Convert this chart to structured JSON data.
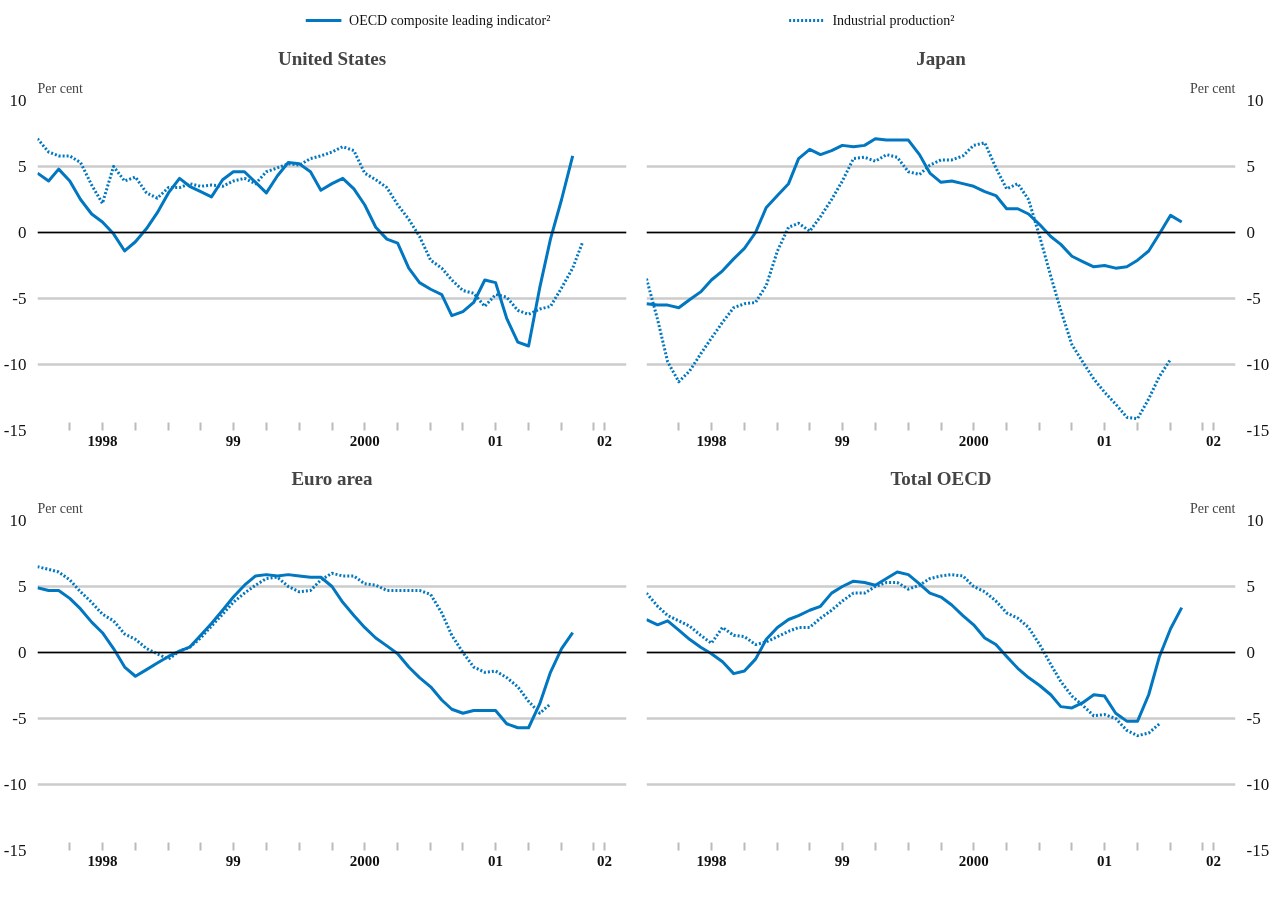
{
  "chart_data": [
    {
      "type": "line",
      "title": "United States",
      "ylabel": "Per cent",
      "legend": "top",
      "grid": "y",
      "xlim": [
        "1998-01",
        "2002-07"
      ],
      "ylim": [
        -15,
        10
      ],
      "yticks": [
        -15,
        -10,
        -5,
        0,
        5,
        10
      ],
      "xticks": [
        {
          "value": "1998-04",
          "label": null
        },
        {
          "value": "1998-07",
          "label": "1998"
        },
        {
          "value": "1998-10",
          "label": null
        },
        {
          "value": "1999-01",
          "label": null
        },
        {
          "value": "1999-04",
          "label": null
        },
        {
          "value": "1999-07",
          "label": "99"
        },
        {
          "value": "1999-10",
          "label": null
        },
        {
          "value": "2000-01",
          "label": null
        },
        {
          "value": "2000-04",
          "label": null
        },
        {
          "value": "2000-07",
          "label": "2000"
        },
        {
          "value": "2000-10",
          "label": null
        },
        {
          "value": "2001-01",
          "label": null
        },
        {
          "value": "2001-04",
          "label": null
        },
        {
          "value": "2001-07",
          "label": "01"
        },
        {
          "value": "2001-10",
          "label": null
        },
        {
          "value": "2002-01",
          "label": null
        },
        {
          "value": "2002-04",
          "label": null
        },
        {
          "value": "2002-05",
          "label": "02"
        }
      ],
      "ref_lines": [
        {
          "axis": "y",
          "value": 0,
          "color": "#000000"
        }
      ],
      "series": [
        {
          "name": "OECD composite leading indicator²",
          "color": "#0077c0",
          "line_style": "solid",
          "x": [
            "1998-01",
            "1998-02",
            "1998-03",
            "1998-04",
            "1998-05",
            "1998-06",
            "1998-07",
            "1998-08",
            "1998-09",
            "1998-10",
            "1998-11",
            "1998-12",
            "1999-01",
            "1999-02",
            "1999-03",
            "1999-04",
            "1999-05",
            "1999-06",
            "1999-07",
            "1999-08",
            "1999-09",
            "1999-10",
            "1999-11",
            "1999-12",
            "2000-01",
            "2000-02",
            "2000-03",
            "2000-04",
            "2000-05",
            "2000-06",
            "2000-07",
            "2000-08",
            "2000-09",
            "2000-10",
            "2000-11",
            "2000-12",
            "2001-01",
            "2001-02",
            "2001-03",
            "2001-04",
            "2001-05",
            "2001-06",
            "2001-07",
            "2001-08",
            "2001-09",
            "2001-10",
            "2001-11",
            "2001-12",
            "2002-01",
            "2002-02"
          ],
          "values": [
            4.5,
            3.9,
            4.8,
            3.9,
            2.5,
            1.4,
            0.8,
            -0.1,
            -1.4,
            -0.7,
            0.3,
            1.5,
            3.0,
            4.1,
            3.5,
            3.1,
            2.7,
            4.0,
            4.6,
            4.6,
            3.8,
            3.0,
            4.3,
            5.3,
            5.2,
            4.6,
            3.2,
            3.7,
            4.1,
            3.3,
            2.1,
            0.4,
            -0.5,
            -0.8,
            -2.7,
            -3.8,
            -4.3,
            -4.7,
            -6.3,
            -6.0,
            -5.3,
            -3.6,
            -3.8,
            -6.5,
            -8.3,
            -8.6,
            -4.2,
            -0.5,
            2.5,
            5.8
          ]
        },
        {
          "name": "Industrial production²",
          "color": "#0077c0",
          "line_style": "dotted",
          "x": [
            "1998-01",
            "1998-02",
            "1998-03",
            "1998-04",
            "1998-05",
            "1998-06",
            "1998-07",
            "1998-08",
            "1998-09",
            "1998-10",
            "1998-11",
            "1998-12",
            "1999-01",
            "1999-02",
            "1999-03",
            "1999-04",
            "1999-05",
            "1999-06",
            "1999-07",
            "1999-08",
            "1999-09",
            "1999-10",
            "1999-11",
            "1999-12",
            "2000-01",
            "2000-02",
            "2000-03",
            "2000-04",
            "2000-05",
            "2000-06",
            "2000-07",
            "2000-08",
            "2000-09",
            "2000-10",
            "2000-11",
            "2000-12",
            "2001-01",
            "2001-02",
            "2001-03",
            "2001-04",
            "2001-05",
            "2001-06",
            "2001-07",
            "2001-08",
            "2001-09",
            "2001-10",
            "2001-11",
            "2001-12",
            "2002-01",
            "2002-02",
            "2002-03"
          ],
          "values": [
            7.1,
            6.1,
            5.8,
            5.8,
            5.3,
            3.6,
            2.2,
            5.0,
            3.9,
            4.2,
            3.0,
            2.6,
            3.4,
            3.4,
            3.7,
            3.5,
            3.6,
            3.5,
            3.9,
            4.1,
            3.7,
            4.6,
            4.9,
            5.2,
            5.1,
            5.6,
            5.8,
            6.1,
            6.5,
            6.2,
            4.5,
            4.0,
            3.4,
            2.1,
            1.0,
            -0.3,
            -2.1,
            -2.7,
            -3.6,
            -4.4,
            -4.6,
            -5.6,
            -4.7,
            -4.9,
            -5.9,
            -6.2,
            -5.8,
            -5.6,
            -4.2,
            -2.7,
            -0.7
          ]
        }
      ]
    },
    {
      "type": "line",
      "title": "Japan",
      "y2label": "Per cent",
      "grid": "y",
      "xlim": [
        "1998-01",
        "2002-07"
      ],
      "y2lim": [
        -15,
        10
      ],
      "y2ticks": [
        -15,
        -10,
        -5,
        0,
        5,
        10
      ],
      "xticks": [
        {
          "value": "1998-04",
          "label": null
        },
        {
          "value": "1998-07",
          "label": "1998"
        },
        {
          "value": "1998-10",
          "label": null
        },
        {
          "value": "1999-01",
          "label": null
        },
        {
          "value": "1999-04",
          "label": null
        },
        {
          "value": "1999-07",
          "label": "99"
        },
        {
          "value": "1999-10",
          "label": null
        },
        {
          "value": "2000-01",
          "label": null
        },
        {
          "value": "2000-04",
          "label": null
        },
        {
          "value": "2000-07",
          "label": "2000"
        },
        {
          "value": "2000-10",
          "label": null
        },
        {
          "value": "2001-01",
          "label": null
        },
        {
          "value": "2001-04",
          "label": null
        },
        {
          "value": "2001-07",
          "label": "01"
        },
        {
          "value": "2001-10",
          "label": null
        },
        {
          "value": "2002-01",
          "label": null
        },
        {
          "value": "2002-04",
          "label": null
        },
        {
          "value": "2002-05",
          "label": "02"
        }
      ],
      "ref_lines": [
        {
          "axis": "y2",
          "value": 0,
          "color": "#000000"
        }
      ],
      "series": [
        {
          "color": "#0077c0",
          "line_style": "solid",
          "axis": "y2",
          "x": [
            "1998-01",
            "1998-02",
            "1998-03",
            "1998-04",
            "1998-05",
            "1998-06",
            "1998-07",
            "1998-08",
            "1998-09",
            "1998-10",
            "1998-11",
            "1998-12",
            "1999-01",
            "1999-02",
            "1999-03",
            "1999-04",
            "1999-05",
            "1999-06",
            "1999-07",
            "1999-08",
            "1999-09",
            "1999-10",
            "1999-11",
            "1999-12",
            "2000-01",
            "2000-02",
            "2000-03",
            "2000-04",
            "2000-05",
            "2000-06",
            "2000-07",
            "2000-08",
            "2000-09",
            "2000-10",
            "2000-11",
            "2000-12",
            "2001-01",
            "2001-02",
            "2001-03",
            "2001-04",
            "2001-05",
            "2001-06",
            "2001-07",
            "2001-08",
            "2001-09",
            "2001-10",
            "2001-11",
            "2001-12",
            "2002-01",
            "2002-02"
          ],
          "values": [
            -5.4,
            -5.5,
            -5.5,
            -5.7,
            -5.1,
            -4.5,
            -3.6,
            -2.9,
            -2.0,
            -1.2,
            0.0,
            1.9,
            2.8,
            3.7,
            5.6,
            6.3,
            5.9,
            6.2,
            6.6,
            6.5,
            6.6,
            7.1,
            7.0,
            7.0,
            7.0,
            5.9,
            4.5,
            3.8,
            3.9,
            3.7,
            3.5,
            3.1,
            2.8,
            1.8,
            1.8,
            1.4,
            0.6,
            -0.3,
            -0.9,
            -1.8,
            -2.2,
            -2.6,
            -2.5,
            -2.7,
            -2.6,
            -2.1,
            -1.4,
            -0.1,
            1.3,
            0.8
          ]
        },
        {
          "color": "#0077c0",
          "line_style": "dotted",
          "axis": "y2",
          "x": [
            "1998-01",
            "1998-02",
            "1998-03",
            "1998-04",
            "1998-05",
            "1998-06",
            "1998-07",
            "1998-08",
            "1998-09",
            "1998-10",
            "1998-11",
            "1998-12",
            "1999-01",
            "1999-02",
            "1999-03",
            "1999-04",
            "1999-05",
            "1999-06",
            "1999-07",
            "1999-08",
            "1999-09",
            "1999-10",
            "1999-11",
            "1999-12",
            "2000-01",
            "2000-02",
            "2000-03",
            "2000-04",
            "2000-05",
            "2000-06",
            "2000-07",
            "2000-08",
            "2000-09",
            "2000-10",
            "2000-11",
            "2000-12",
            "2001-01",
            "2001-02",
            "2001-03",
            "2001-04",
            "2001-05",
            "2001-06",
            "2001-07",
            "2001-08",
            "2001-09",
            "2001-10",
            "2001-11",
            "2001-12",
            "2002-01"
          ],
          "values": [
            -3.5,
            -6.6,
            -9.8,
            -11.3,
            -10.5,
            -9.2,
            -8.0,
            -6.8,
            -5.7,
            -5.4,
            -5.3,
            -4.0,
            -1.4,
            0.4,
            0.7,
            0.1,
            1.2,
            2.5,
            3.9,
            5.6,
            5.7,
            5.4,
            5.9,
            5.7,
            4.6,
            4.4,
            5.1,
            5.5,
            5.5,
            5.8,
            6.6,
            6.8,
            4.9,
            3.3,
            3.7,
            2.5,
            -0.3,
            -3.3,
            -5.9,
            -8.5,
            -9.8,
            -11.1,
            -12.1,
            -13.0,
            -14.0,
            -14.1,
            -12.6,
            -10.9,
            -9.6
          ]
        }
      ]
    },
    {
      "type": "line",
      "title": "Euro area",
      "ylabel": "Per cent",
      "grid": "y",
      "xlim": [
        "1998-01",
        "2002-07"
      ],
      "ylim": [
        -15,
        10
      ],
      "yticks": [
        -15,
        -10,
        -5,
        0,
        5,
        10
      ],
      "xticks": [
        {
          "value": "1998-04",
          "label": null
        },
        {
          "value": "1998-07",
          "label": "1998"
        },
        {
          "value": "1998-10",
          "label": null
        },
        {
          "value": "1999-01",
          "label": null
        },
        {
          "value": "1999-04",
          "label": null
        },
        {
          "value": "1999-07",
          "label": "99"
        },
        {
          "value": "1999-10",
          "label": null
        },
        {
          "value": "2000-01",
          "label": null
        },
        {
          "value": "2000-04",
          "label": null
        },
        {
          "value": "2000-07",
          "label": "2000"
        },
        {
          "value": "2000-10",
          "label": null
        },
        {
          "value": "2001-01",
          "label": null
        },
        {
          "value": "2001-04",
          "label": null
        },
        {
          "value": "2001-07",
          "label": "01"
        },
        {
          "value": "2001-10",
          "label": null
        },
        {
          "value": "2002-01",
          "label": null
        },
        {
          "value": "2002-04",
          "label": null
        },
        {
          "value": "2002-05",
          "label": "02"
        }
      ],
      "ref_lines": [
        {
          "axis": "y",
          "value": 0,
          "color": "#000000"
        }
      ],
      "series": [
        {
          "color": "#0077c0",
          "line_style": "solid",
          "x": [
            "1998-01",
            "1998-02",
            "1998-03",
            "1998-04",
            "1998-05",
            "1998-06",
            "1998-07",
            "1998-08",
            "1998-09",
            "1998-10",
            "1998-11",
            "1998-12",
            "1999-01",
            "1999-02",
            "1999-03",
            "1999-04",
            "1999-05",
            "1999-06",
            "1999-07",
            "1999-08",
            "1999-09",
            "1999-10",
            "1999-11",
            "1999-12",
            "2000-01",
            "2000-02",
            "2000-03",
            "2000-04",
            "2000-05",
            "2000-06",
            "2000-07",
            "2000-08",
            "2000-09",
            "2000-10",
            "2000-11",
            "2000-12",
            "2001-01",
            "2001-02",
            "2001-03",
            "2001-04",
            "2001-05",
            "2001-06",
            "2001-07",
            "2001-08",
            "2001-09",
            "2001-10",
            "2001-11",
            "2001-12",
            "2002-01",
            "2002-02"
          ],
          "values": [
            4.9,
            4.7,
            4.7,
            4.1,
            3.3,
            2.3,
            1.5,
            0.3,
            -1.1,
            -1.8,
            -1.3,
            -0.8,
            -0.3,
            0.1,
            0.4,
            1.3,
            2.2,
            3.2,
            4.2,
            5.1,
            5.8,
            5.9,
            5.8,
            5.9,
            5.8,
            5.7,
            5.7,
            5.0,
            3.8,
            2.8,
            1.9,
            1.1,
            0.5,
            -0.1,
            -1.1,
            -1.9,
            -2.6,
            -3.6,
            -4.3,
            -4.6,
            -4.4,
            -4.4,
            -4.4,
            -5.4,
            -5.7,
            -5.7,
            -3.9,
            -1.5,
            0.3,
            1.5
          ]
        },
        {
          "color": "#0077c0",
          "line_style": "dotted",
          "x": [
            "1998-01",
            "1998-02",
            "1998-03",
            "1998-04",
            "1998-05",
            "1998-06",
            "1998-07",
            "1998-08",
            "1998-09",
            "1998-10",
            "1998-11",
            "1998-12",
            "1999-01",
            "1999-02",
            "1999-03",
            "1999-04",
            "1999-05",
            "1999-06",
            "1999-07",
            "1999-08",
            "1999-09",
            "1999-10",
            "1999-11",
            "1999-12",
            "2000-01",
            "2000-02",
            "2000-03",
            "2000-04",
            "2000-05",
            "2000-06",
            "2000-07",
            "2000-08",
            "2000-09",
            "2000-10",
            "2000-11",
            "2000-12",
            "2001-01",
            "2001-02",
            "2001-03",
            "2001-04",
            "2001-05",
            "2001-06",
            "2001-07",
            "2001-08",
            "2001-09",
            "2001-10",
            "2001-11",
            "2001-12"
          ],
          "values": [
            6.5,
            6.3,
            6.1,
            5.5,
            4.6,
            3.8,
            2.9,
            2.4,
            1.4,
            1.0,
            0.3,
            -0.1,
            -0.5,
            0.1,
            0.4,
            1.1,
            2.0,
            2.9,
            3.8,
            4.5,
            5.1,
            5.6,
            5.7,
            5.0,
            4.6,
            4.7,
            5.5,
            6.0,
            5.8,
            5.8,
            5.2,
            5.1,
            4.7,
            4.7,
            4.7,
            4.7,
            4.4,
            3.0,
            1.3,
            0.0,
            -1.1,
            -1.5,
            -1.4,
            -1.9,
            -2.6,
            -3.7,
            -4.6,
            -3.9
          ]
        }
      ]
    },
    {
      "type": "line",
      "title": "Total OECD",
      "y2label": "Per cent",
      "grid": "y",
      "xlim": [
        "1998-01",
        "2002-07"
      ],
      "y2lim": [
        -15,
        10
      ],
      "y2ticks": [
        -15,
        -10,
        -5,
        0,
        5,
        10
      ],
      "xticks": [
        {
          "value": "1998-04",
          "label": null
        },
        {
          "value": "1998-07",
          "label": "1998"
        },
        {
          "value": "1998-10",
          "label": null
        },
        {
          "value": "1999-01",
          "label": null
        },
        {
          "value": "1999-04",
          "label": null
        },
        {
          "value": "1999-07",
          "label": "99"
        },
        {
          "value": "1999-10",
          "label": null
        },
        {
          "value": "2000-01",
          "label": null
        },
        {
          "value": "2000-04",
          "label": null
        },
        {
          "value": "2000-07",
          "label": "2000"
        },
        {
          "value": "2000-10",
          "label": null
        },
        {
          "value": "2001-01",
          "label": null
        },
        {
          "value": "2001-04",
          "label": null
        },
        {
          "value": "2001-07",
          "label": "01"
        },
        {
          "value": "2001-10",
          "label": null
        },
        {
          "value": "2002-01",
          "label": null
        },
        {
          "value": "2002-04",
          "label": null
        },
        {
          "value": "2002-05",
          "label": "02"
        }
      ],
      "ref_lines": [
        {
          "axis": "y2",
          "value": 0,
          "color": "#000000"
        }
      ],
      "series": [
        {
          "color": "#0077c0",
          "line_style": "solid",
          "axis": "y2",
          "x": [
            "1998-01",
            "1998-02",
            "1998-03",
            "1998-04",
            "1998-05",
            "1998-06",
            "1998-07",
            "1998-08",
            "1998-09",
            "1998-10",
            "1998-11",
            "1998-12",
            "1999-01",
            "1999-02",
            "1999-03",
            "1999-04",
            "1999-05",
            "1999-06",
            "1999-07",
            "1999-08",
            "1999-09",
            "1999-10",
            "1999-11",
            "1999-12",
            "2000-01",
            "2000-02",
            "2000-03",
            "2000-04",
            "2000-05",
            "2000-06",
            "2000-07",
            "2000-08",
            "2000-09",
            "2000-10",
            "2000-11",
            "2000-12",
            "2001-01",
            "2001-02",
            "2001-03",
            "2001-04",
            "2001-05",
            "2001-06",
            "2001-07",
            "2001-08",
            "2001-09",
            "2001-10",
            "2001-11",
            "2001-12",
            "2002-01",
            "2002-02"
          ],
          "values": [
            2.5,
            2.1,
            2.4,
            1.7,
            1.0,
            0.4,
            -0.1,
            -0.7,
            -1.6,
            -1.4,
            -0.5,
            1.0,
            1.9,
            2.5,
            2.8,
            3.2,
            3.5,
            4.5,
            5.0,
            5.4,
            5.3,
            5.1,
            5.6,
            6.1,
            5.9,
            5.2,
            4.5,
            4.2,
            3.6,
            2.8,
            2.1,
            1.1,
            0.6,
            -0.3,
            -1.2,
            -1.9,
            -2.5,
            -3.2,
            -4.1,
            -4.2,
            -3.8,
            -3.2,
            -3.3,
            -4.6,
            -5.2,
            -5.2,
            -3.2,
            -0.3,
            1.8,
            3.4
          ]
        },
        {
          "color": "#0077c0",
          "line_style": "dotted",
          "axis": "y2",
          "x": [
            "1998-01",
            "1998-02",
            "1998-03",
            "1998-04",
            "1998-05",
            "1998-06",
            "1998-07",
            "1998-08",
            "1998-09",
            "1998-10",
            "1998-11",
            "1998-12",
            "1999-01",
            "1999-02",
            "1999-03",
            "1999-04",
            "1999-05",
            "1999-06",
            "1999-07",
            "1999-08",
            "1999-09",
            "1999-10",
            "1999-11",
            "1999-12",
            "2000-01",
            "2000-02",
            "2000-03",
            "2000-04",
            "2000-05",
            "2000-06",
            "2000-07",
            "2000-08",
            "2000-09",
            "2000-10",
            "2000-11",
            "2000-12",
            "2001-01",
            "2001-02",
            "2001-03",
            "2001-04",
            "2001-05",
            "2001-06",
            "2001-07",
            "2001-08",
            "2001-09",
            "2001-10",
            "2001-11",
            "2001-12"
          ],
          "values": [
            4.5,
            3.5,
            2.8,
            2.4,
            2.0,
            1.3,
            0.7,
            1.9,
            1.3,
            1.2,
            0.6,
            0.8,
            1.2,
            1.6,
            1.9,
            1.9,
            2.6,
            3.2,
            3.9,
            4.5,
            4.5,
            5.0,
            5.3,
            5.3,
            4.8,
            5.1,
            5.6,
            5.8,
            5.9,
            5.8,
            5.0,
            4.6,
            3.9,
            3.0,
            2.6,
            1.9,
            0.6,
            -0.9,
            -2.2,
            -3.3,
            -4.0,
            -4.8,
            -4.7,
            -5.0,
            -5.9,
            -6.3,
            -6.1,
            -5.4
          ]
        }
      ]
    }
  ]
}
